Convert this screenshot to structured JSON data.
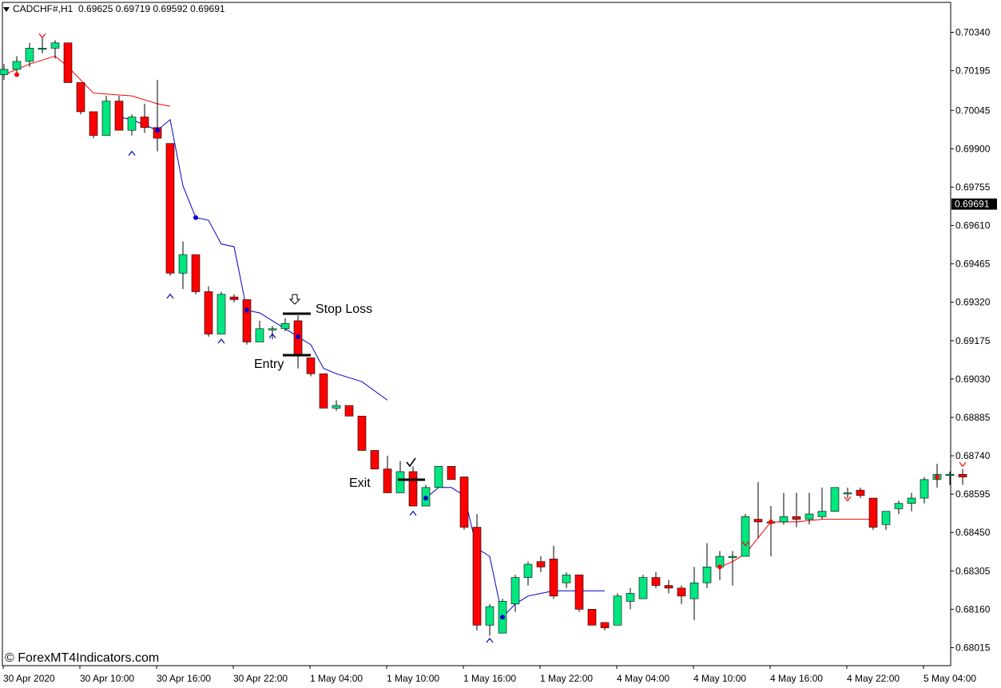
{
  "header": {
    "symbol": "CADCHF#,H1",
    "ohlc": "0.69625 0.69719 0.69592 0.69691"
  },
  "watermark": "© ForexMT4Indicators.com",
  "annotations": {
    "stop_loss": "Stop Loss",
    "entry": "Entry",
    "exit": "Exit",
    "arrow_icon": "down-arrow-icon",
    "check_icon": "checkmark-icon"
  },
  "colors": {
    "bull": "#00e680",
    "bear": "#ff0000",
    "trend_up": "#ff0000",
    "trend_down": "#0000cc"
  },
  "chart_data": {
    "type": "candlestick",
    "price_axis": {
      "min": 0.6795,
      "max": 0.7045,
      "ticks": [
        "0.70340",
        "0.70195",
        "0.70045",
        "0.69900",
        "0.69755",
        "0.69610",
        "0.69465",
        "0.69320",
        "0.69175",
        "0.69030",
        "0.68885",
        "0.68740",
        "0.68595",
        "0.68450",
        "0.68305",
        "0.68160",
        "0.68015"
      ],
      "current": "0.69691"
    },
    "time_labels": [
      "30 Apr 2020",
      "30 Apr 10:00",
      "30 Apr 16:00",
      "30 Apr 22:00",
      "1 May 04:00",
      "1 May 10:00",
      "1 May 16:00",
      "1 May 22:00",
      "4 May 04:00",
      "4 May 10:00",
      "4 May 16:00",
      "4 May 22:00",
      "5 May 04:00"
    ],
    "candles": [
      [
        0.7018,
        0.7022,
        0.7016,
        0.702
      ],
      [
        0.702,
        0.7025,
        0.7018,
        0.7023
      ],
      [
        0.7023,
        0.703,
        0.7021,
        0.7028
      ],
      [
        0.7028,
        0.7032,
        0.7026,
        0.7028
      ],
      [
        0.7028,
        0.7031,
        0.7024,
        0.703
      ],
      [
        0.703,
        0.703,
        0.7015,
        0.7015
      ],
      [
        0.7015,
        0.7015,
        0.7003,
        0.7004
      ],
      [
        0.7004,
        0.7004,
        0.6994,
        0.6995
      ],
      [
        0.6995,
        0.701,
        0.6995,
        0.7008
      ],
      [
        0.7008,
        0.701,
        0.6997,
        0.6997
      ],
      [
        0.6997,
        0.7003,
        0.6995,
        0.7002
      ],
      [
        0.7002,
        0.7007,
        0.6996,
        0.6998
      ],
      [
        0.6998,
        0.7016,
        0.6989,
        0.6994
      ],
      [
        0.6992,
        0.6992,
        0.6942,
        0.6943
      ],
      [
        0.6943,
        0.6955,
        0.6937,
        0.695
      ],
      [
        0.695,
        0.695,
        0.6935,
        0.6936
      ],
      [
        0.6936,
        0.6938,
        0.6919,
        0.692
      ],
      [
        0.692,
        0.6936,
        0.692,
        0.6935
      ],
      [
        0.6934,
        0.6935,
        0.6932,
        0.6933
      ],
      [
        0.6933,
        0.6933,
        0.6916,
        0.6917
      ],
      [
        0.6917,
        0.6925,
        0.6917,
        0.6922
      ],
      [
        0.6922,
        0.6923,
        0.6918,
        0.6922
      ],
      [
        0.6922,
        0.6926,
        0.6921,
        0.6924
      ],
      [
        0.6925,
        0.6927,
        0.6907,
        0.6912
      ],
      [
        0.6911,
        0.6911,
        0.6904,
        0.6905
      ],
      [
        0.6905,
        0.6905,
        0.6892,
        0.6892
      ],
      [
        0.6892,
        0.6895,
        0.6891,
        0.6893
      ],
      [
        0.6893,
        0.6893,
        0.6889,
        0.6889
      ],
      [
        0.6889,
        0.6889,
        0.6876,
        0.6876
      ],
      [
        0.6876,
        0.6876,
        0.6869,
        0.6869
      ],
      [
        0.6869,
        0.6874,
        0.686,
        0.686
      ],
      [
        0.686,
        0.6872,
        0.686,
        0.6868
      ],
      [
        0.6868,
        0.687,
        0.6855,
        0.6855
      ],
      [
        0.6855,
        0.6863,
        0.6855,
        0.6862
      ],
      [
        0.6862,
        0.687,
        0.6862,
        0.687
      ],
      [
        0.687,
        0.687,
        0.6865,
        0.6865
      ],
      [
        0.6866,
        0.6866,
        0.6846,
        0.6847
      ],
      [
        0.6847,
        0.6852,
        0.6808,
        0.681
      ],
      [
        0.681,
        0.6818,
        0.6806,
        0.6817
      ],
      [
        0.6807,
        0.682,
        0.6807,
        0.6819
      ],
      [
        0.6818,
        0.6829,
        0.6815,
        0.6828
      ],
      [
        0.6828,
        0.6834,
        0.6825,
        0.6833
      ],
      [
        0.6834,
        0.6836,
        0.683,
        0.6832
      ],
      [
        0.6835,
        0.684,
        0.682,
        0.6821
      ],
      [
        0.6826,
        0.683,
        0.6824,
        0.6829
      ],
      [
        0.6829,
        0.6829,
        0.6815,
        0.6816
      ],
      [
        0.6816,
        0.6816,
        0.681,
        0.681
      ],
      [
        0.6811,
        0.6811,
        0.6808,
        0.6809
      ],
      [
        0.681,
        0.6822,
        0.681,
        0.6821
      ],
      [
        0.6819,
        0.6824,
        0.6816,
        0.6822
      ],
      [
        0.682,
        0.6829,
        0.682,
        0.6828
      ],
      [
        0.6828,
        0.683,
        0.6824,
        0.6825
      ],
      [
        0.6825,
        0.6827,
        0.6822,
        0.6824
      ],
      [
        0.6824,
        0.6825,
        0.6818,
        0.6821
      ],
      [
        0.682,
        0.6832,
        0.6812,
        0.6826
      ],
      [
        0.6826,
        0.6841,
        0.6824,
        0.6832
      ],
      [
        0.6832,
        0.6838,
        0.6827,
        0.6836
      ],
      [
        0.6836,
        0.6838,
        0.6825,
        0.6836
      ],
      [
        0.6836,
        0.6852,
        0.6836,
        0.6851
      ],
      [
        0.685,
        0.6864,
        0.6843,
        0.6849
      ],
      [
        0.6849,
        0.6855,
        0.6836,
        0.6849
      ],
      [
        0.6849,
        0.686,
        0.6848,
        0.6851
      ],
      [
        0.6851,
        0.686,
        0.6847,
        0.685
      ],
      [
        0.685,
        0.686,
        0.6848,
        0.6852
      ],
      [
        0.6851,
        0.6862,
        0.685,
        0.6853
      ],
      [
        0.6853,
        0.6862,
        0.6853,
        0.6862
      ],
      [
        0.686,
        0.6862,
        0.6858,
        0.686
      ],
      [
        0.6861,
        0.6862,
        0.6858,
        0.6859
      ],
      [
        0.6858,
        0.6858,
        0.6846,
        0.6847
      ],
      [
        0.6848,
        0.6853,
        0.6846,
        0.6853
      ],
      [
        0.6854,
        0.6857,
        0.6852,
        0.6856
      ],
      [
        0.6856,
        0.686,
        0.6853,
        0.6858
      ],
      [
        0.6858,
        0.6866,
        0.6856,
        0.6865
      ],
      [
        0.6865,
        0.6871,
        0.6862,
        0.6867
      ],
      [
        0.6867,
        0.6868,
        0.6863,
        0.6867
      ],
      [
        0.6867,
        0.6869,
        0.6863,
        0.6866
      ]
    ],
    "trend_red_1": [
      [
        0,
        0.7018
      ],
      [
        2,
        0.7022
      ],
      [
        4,
        0.7025
      ],
      [
        5,
        0.7021
      ],
      [
        7,
        0.7011
      ],
      [
        10,
        0.701
      ],
      [
        12,
        0.7007
      ],
      [
        13,
        0.7006
      ]
    ],
    "trend_blue_1": [
      [
        9,
        0.7002
      ],
      [
        10,
        0.7001
      ],
      [
        11,
        0.6999
      ],
      [
        12,
        0.6997
      ],
      [
        13,
        0.7001
      ],
      [
        14,
        0.6976
      ],
      [
        15,
        0.6964
      ],
      [
        16,
        0.6963
      ],
      [
        17,
        0.6954
      ],
      [
        18,
        0.6953
      ],
      [
        19,
        0.6929
      ],
      [
        20,
        0.6928
      ],
      [
        21,
        0.6925
      ],
      [
        23,
        0.6919
      ],
      [
        24,
        0.6916
      ],
      [
        25,
        0.6907
      ],
      [
        26,
        0.6905
      ],
      [
        28,
        0.6902
      ],
      [
        30,
        0.6895
      ]
    ],
    "trend_blue_2": [
      [
        33,
        0.6858
      ],
      [
        34,
        0.6862
      ],
      [
        35,
        0.6862
      ],
      [
        36,
        0.6859
      ],
      [
        37,
        0.6839
      ],
      [
        38,
        0.6836
      ],
      [
        39,
        0.6813
      ],
      [
        40,
        0.6818
      ],
      [
        41,
        0.6821
      ],
      [
        42,
        0.6822
      ],
      [
        43,
        0.6823
      ],
      [
        45,
        0.6823
      ],
      [
        47,
        0.6823
      ]
    ],
    "trend_red_2": [
      [
        56,
        0.6832
      ],
      [
        57,
        0.6834
      ],
      [
        58,
        0.6837
      ],
      [
        59,
        0.6843
      ],
      [
        60,
        0.6849
      ],
      [
        62,
        0.6849
      ],
      [
        64,
        0.685
      ],
      [
        66,
        0.685
      ],
      [
        68,
        0.685
      ]
    ],
    "dots_red": [
      [
        1,
        0.7018
      ],
      [
        56,
        0.6832
      ],
      [
        60,
        0.6849
      ],
      [
        73,
        0.6866
      ]
    ],
    "dots_blue": [
      [
        12,
        0.6997
      ],
      [
        15,
        0.6964
      ],
      [
        19,
        0.6929
      ],
      [
        23,
        0.6919
      ],
      [
        33,
        0.6858
      ],
      [
        39,
        0.6813
      ]
    ],
    "arrows_blue": [
      [
        10,
        0.6989
      ],
      [
        13,
        0.6935
      ],
      [
        17,
        0.6918
      ],
      [
        21,
        0.692
      ],
      [
        32,
        0.6853
      ],
      [
        38,
        0.6805
      ]
    ],
    "arrows_red": [
      [
        3,
        0.7032
      ],
      [
        58,
        0.684
      ],
      [
        66,
        0.6857
      ],
      [
        75,
        0.687
      ]
    ]
  }
}
